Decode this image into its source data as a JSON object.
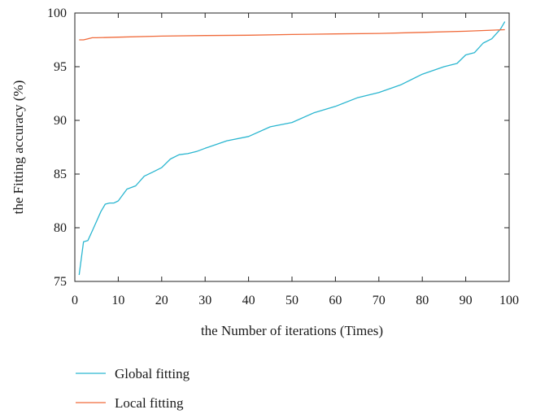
{
  "chart_data": {
    "type": "line",
    "title": "",
    "xlabel": "the Number of iterations (Times)",
    "ylabel": "the Fitting accuracy (%)",
    "xlim": [
      0,
      100
    ],
    "ylim": [
      75,
      100
    ],
    "xticks": [
      0,
      10,
      20,
      30,
      40,
      50,
      60,
      70,
      80,
      90,
      100
    ],
    "yticks": [
      75,
      80,
      85,
      90,
      95,
      100
    ],
    "grid": false,
    "legend_position": "bottom-left, below plot",
    "series": [
      {
        "name": "Global fitting",
        "color": "#2ab6d0",
        "x": [
          1,
          2,
          3,
          4,
          5,
          6,
          7,
          8,
          9,
          10,
          12,
          14,
          16,
          18,
          20,
          22,
          24,
          26,
          28,
          30,
          35,
          40,
          45,
          50,
          55,
          60,
          65,
          70,
          75,
          80,
          85,
          88,
          90,
          92,
          94,
          96,
          98,
          99
        ],
        "y": [
          75.6,
          78.7,
          78.8,
          79.7,
          80.6,
          81.5,
          82.2,
          82.3,
          82.3,
          82.5,
          83.6,
          83.9,
          84.8,
          85.2,
          85.6,
          86.4,
          86.8,
          86.9,
          87.1,
          87.4,
          88.1,
          88.5,
          89.4,
          89.8,
          90.7,
          91.3,
          92.1,
          92.6,
          93.3,
          94.3,
          95.0,
          95.3,
          96.1,
          96.3,
          97.2,
          97.6,
          98.5,
          99.2
        ]
      },
      {
        "name": "Local fitting",
        "color": "#f06a3a",
        "x": [
          1,
          2,
          3,
          4,
          5,
          10,
          20,
          30,
          40,
          50,
          60,
          70,
          80,
          90,
          99
        ],
        "y": [
          97.5,
          97.5,
          97.6,
          97.7,
          97.7,
          97.75,
          97.85,
          97.9,
          97.93,
          98.0,
          98.05,
          98.1,
          98.2,
          98.3,
          98.45
        ]
      }
    ]
  }
}
